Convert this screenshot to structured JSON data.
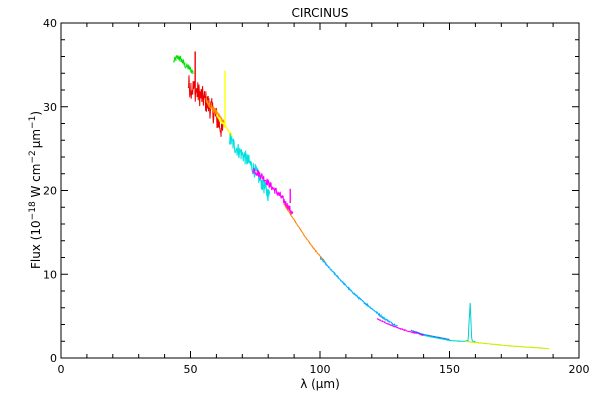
{
  "chart_data": {
    "type": "line",
    "title": "CIRCINUS",
    "xlabel": "λ (μm)",
    "ylabel_parts": {
      "a": "Flux (10",
      "b": "−18",
      "c": " W cm",
      "d": "−2",
      "e": "μm",
      "f": "−1",
      "g": ")"
    },
    "xlim": [
      0,
      200
    ],
    "ylim": [
      0,
      40
    ],
    "xticks": [
      0,
      50,
      100,
      150,
      200
    ],
    "xtick_labels": [
      "0",
      "50",
      "100",
      "150",
      "200"
    ],
    "yticks": [
      0,
      10,
      20,
      30,
      40
    ],
    "ytick_labels": [
      "0",
      "10",
      "20",
      "30",
      "40"
    ],
    "grid": false,
    "series": [
      {
        "color": "#00dd00",
        "x": [
          43.5,
          44.5,
          45.5,
          46.5,
          47.5,
          48.5,
          49.5,
          50.5,
          51.0
        ],
        "y": [
          35.4,
          35.8,
          35.9,
          35.6,
          35.1,
          34.8,
          34.6,
          34.3,
          34.1
        ],
        "noise": 0.4
      },
      {
        "color": "#ee0000",
        "x": [
          49.0,
          51.0,
          53.0,
          55.0,
          57.0,
          59.0,
          61.0,
          62.5
        ],
        "y": [
          32.6,
          32.2,
          31.6,
          31.0,
          30.2,
          29.3,
          28.0,
          27.0
        ],
        "noise": 1.4
      },
      {
        "color": "#ff8800",
        "x": [
          56.0,
          58.0,
          60.0,
          62.0,
          63.5
        ],
        "y": [
          30.8,
          30.0,
          29.3,
          28.5,
          27.9
        ],
        "noise": 0.4
      },
      {
        "color": "#ffff00",
        "x": [
          60.0,
          62.0,
          63.0,
          63.3,
          63.8,
          64.5,
          66.0
        ],
        "y": [
          29.0,
          28.2,
          27.8,
          27.6,
          27.5,
          27.2,
          26.5
        ],
        "noise": 0.2
      },
      {
        "color": "#00e0e0",
        "x": [
          65.0,
          67.0,
          69.0,
          71.0,
          73.0,
          75.0,
          77.0,
          79.0,
          80.5
        ],
        "y": [
          26.2,
          25.3,
          24.6,
          24.0,
          23.2,
          22.3,
          21.2,
          20.1,
          19.3
        ],
        "noise": 0.9
      },
      {
        "color": "#ff00ff",
        "x": [
          74.0,
          76.0,
          78.0,
          80.0,
          82.0,
          84.0,
          86.0,
          88.0,
          89.5
        ],
        "y": [
          22.6,
          22.1,
          21.6,
          20.9,
          20.2,
          19.6,
          18.8,
          17.9,
          17.2
        ],
        "noise": 0.45
      },
      {
        "color": "#ff7f00",
        "x": [
          86.0,
          90.0,
          94.0,
          98.0,
          100.0,
          102.0
        ],
        "y": [
          18.4,
          16.5,
          14.6,
          12.9,
          12.2,
          11.5
        ],
        "noise": 0.06
      },
      {
        "color": "#00b0ff",
        "x": [
          100.0,
          104.0,
          108.0,
          112.0,
          116.0,
          120.0,
          124.0,
          128.0,
          130.0
        ],
        "y": [
          12.0,
          10.6,
          9.3,
          8.0,
          6.9,
          5.9,
          4.9,
          4.1,
          3.8
        ],
        "noise": 0.1
      },
      {
        "color": "#ff00ff",
        "x": [
          122.0,
          126.0,
          130.0,
          134.0,
          138.0,
          140.0
        ],
        "y": [
          4.7,
          4.1,
          3.6,
          3.2,
          2.9,
          2.7
        ],
        "noise": 0.05
      },
      {
        "color": "#2060ff",
        "x": [
          135.0,
          140.0,
          145.0,
          150.0
        ],
        "y": [
          3.3,
          2.8,
          2.5,
          2.2
        ],
        "noise": 0.04
      },
      {
        "color": "#00d0d0",
        "x": [
          140.0,
          145.0,
          150.0,
          154.0,
          156.0,
          157.2,
          157.6,
          158.0,
          158.3,
          158.6,
          159.0,
          160.0
        ],
        "y": [
          2.7,
          2.4,
          2.1,
          2.0,
          2.0,
          2.1,
          4.5,
          6.6,
          4.2,
          2.2,
          2.0,
          1.95
        ],
        "noise": 0.02
      },
      {
        "color": "#ccee00",
        "x": [
          156.0,
          160.0,
          165.0,
          170.0,
          175.0,
          180.0,
          185.0,
          188.5
        ],
        "y": [
          2.0,
          1.85,
          1.7,
          1.55,
          1.4,
          1.3,
          1.2,
          1.1
        ],
        "noise": 0.03
      }
    ],
    "spikes": [
      {
        "color": "#ee0000",
        "x": 51.8,
        "y0": 31.5,
        "y1": 36.6
      },
      {
        "color": "#ffff00",
        "x": 63.3,
        "y0": 27.5,
        "y1": 34.3
      },
      {
        "color": "#ff00ff",
        "x": 88.5,
        "y0": 18.5,
        "y1": 20.2
      }
    ]
  }
}
